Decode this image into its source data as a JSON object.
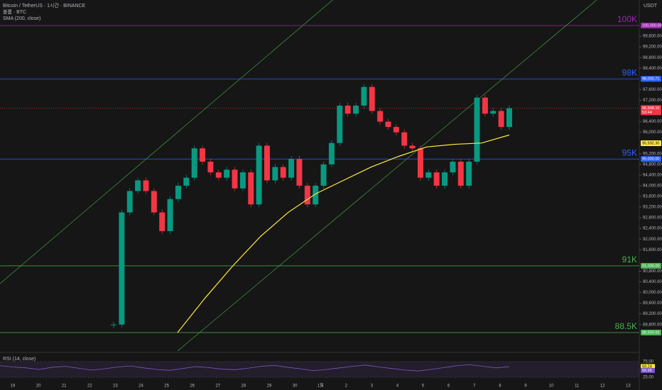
{
  "chart_data": {
    "type": "candlestick",
    "header": {
      "symbol": "Bitcoin / TetherUS · 1시간 · BINANCE",
      "volume": "볼륨 · BTC",
      "sma": "SMA (200, close)"
    },
    "currency": "USDT",
    "ylim": [
      100000,
      88500
    ],
    "yticks": [
      {
        "value": 99600,
        "label": "99,600.00"
      },
      {
        "value": 99200,
        "label": "99,200.00"
      },
      {
        "value": 98800,
        "label": "98,800.00"
      },
      {
        "value": 98400,
        "label": "98,400.00"
      },
      {
        "value": 97600,
        "label": "97,600.00"
      },
      {
        "value": 97200,
        "label": "97,200.00"
      },
      {
        "value": 96400,
        "label": "96,400.00"
      },
      {
        "value": 96000,
        "label": "96,000.00"
      },
      {
        "value": 95200,
        "label": "95,200.00"
      },
      {
        "value": 94800,
        "label": "94,800.00"
      },
      {
        "value": 94400,
        "label": "94,400.00"
      },
      {
        "value": 94000,
        "label": "94,000.00"
      },
      {
        "value": 93600,
        "label": "93,600.00"
      },
      {
        "value": 93200,
        "label": "93,200.00"
      },
      {
        "value": 92800,
        "label": "92,800.00"
      },
      {
        "value": 92400,
        "label": "92,400.00"
      },
      {
        "value": 92000,
        "label": "92,000.00"
      },
      {
        "value": 91600,
        "label": "91,600.00"
      },
      {
        "value": 90800,
        "label": "90,800.00"
      },
      {
        "value": 90400,
        "label": "90,400.00"
      },
      {
        "value": 90000,
        "label": "90,000.00"
      },
      {
        "value": 89600,
        "label": "89,600.00"
      },
      {
        "value": 89200,
        "label": "89,200.00"
      },
      {
        "value": 88800,
        "label": "88,800.00"
      }
    ],
    "levels": [
      {
        "value": 100000,
        "name": "100K",
        "label": "100,000.00",
        "color": "#9c27b0"
      },
      {
        "value": 98000.71,
        "name": "98K",
        "label": "98,000.71",
        "color": "#2962ff"
      },
      {
        "value": 95000,
        "name": "95K",
        "label": "95,000.00",
        "color": "#2962ff"
      },
      {
        "value": 91000,
        "name": "91K",
        "label": "91,000.00",
        "color": "#4caf50"
      },
      {
        "value": 88500,
        "name": "88.5K",
        "label": "88,500.00",
        "color": "#4caf50"
      }
    ],
    "last_price": {
      "value": 96908.1,
      "label": "96,908.10",
      "countdown": "53:44",
      "color": "#f23645"
    },
    "sma_price": {
      "value": 95592.3,
      "label": "95,592.30",
      "color": "#ffeb3b"
    },
    "x_labels": [
      "19",
      "20",
      "21",
      "22",
      "23",
      "24",
      "25",
      "26",
      "27",
      "28",
      "29",
      "30",
      "1월",
      "2",
      "3",
      "4",
      "5",
      "6",
      "7",
      "8",
      "9",
      "10",
      "11",
      "12",
      "13"
    ],
    "series": [
      {
        "name": "price",
        "up_color": "#089981",
        "down_color": "#f23645",
        "values": [
          88800,
          93000,
          93800,
          94200,
          93800,
          93000,
          92300,
          93500,
          94000,
          94300,
          95400,
          94900,
          94500,
          94300,
          94600,
          93900,
          94500,
          93300,
          95500,
          94200,
          94700,
          94300,
          95000,
          94000,
          93300,
          94000,
          94800,
          95600,
          97000,
          96700,
          97000,
          97700,
          96800,
          96400,
          96200,
          96000,
          95500,
          95400,
          94300,
          94500,
          94000,
          94500,
          94900,
          94000,
          94900,
          97300,
          96700,
          96800,
          96200,
          96900
        ]
      },
      {
        "name": "SMA (200, close)",
        "color": "#ffeb3b",
        "values": [
          88500,
          89800,
          91000,
          92100,
          93000,
          93700,
          94200,
          94700,
          95100,
          95450,
          95550,
          95600,
          95900
        ]
      }
    ],
    "rsi": {
      "title": "RSI (14, close)",
      "color": "#7e57c2",
      "ylim": [
        25,
        75
      ],
      "yticks": [
        {
          "value": 75,
          "label": "75.00"
        },
        {
          "value": 25,
          "label": "25.00"
        }
      ],
      "values": [
        62,
        58,
        55,
        50,
        57,
        60,
        54,
        48,
        52,
        58,
        61,
        55,
        50,
        47,
        53,
        59,
        56,
        51,
        49,
        54,
        60,
        63,
        57,
        52,
        46,
        50,
        55,
        60,
        64,
        58,
        53,
        48,
        45,
        50,
        56,
        62,
        65,
        60,
        55,
        59
      ],
      "value_label": {
        "value": 59.24,
        "label": "59.24"
      },
      "ma_label": {
        "value": 55.95,
        "label": "55.95"
      }
    }
  }
}
